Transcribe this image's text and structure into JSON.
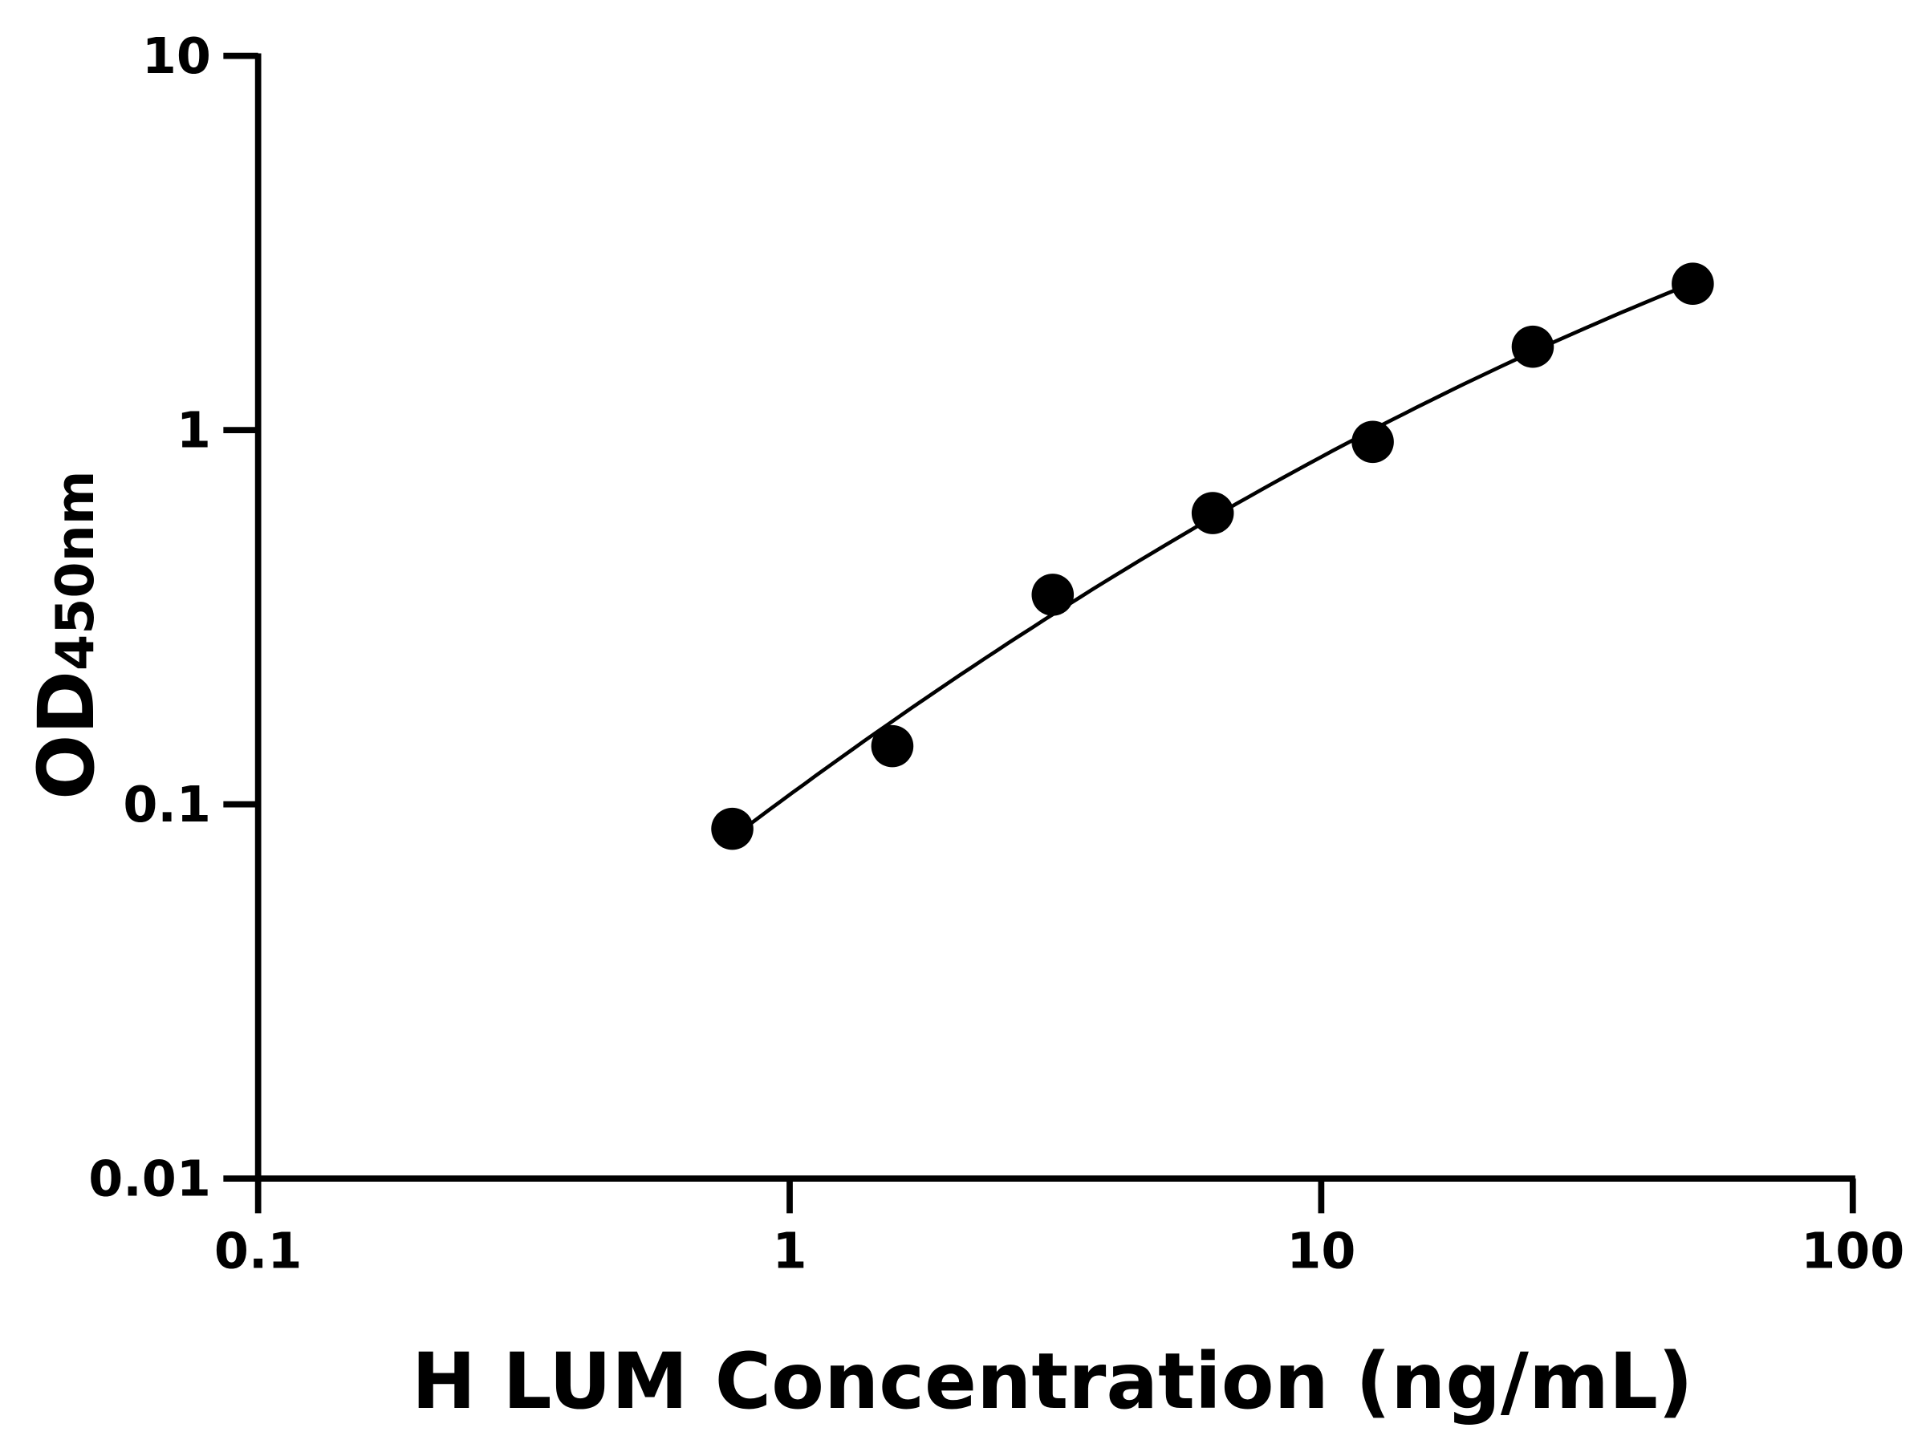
{
  "chart_data": {
    "type": "scatter",
    "title": "",
    "xlabel": "H LUM Concentration (ng/mL)",
    "ylabel_main": "OD",
    "ylabel_sub": "450nm",
    "x_scale": "log",
    "y_scale": "log",
    "xlim": [
      0.1,
      100
    ],
    "ylim": [
      0.01,
      10
    ],
    "x_ticks": [
      "0.1",
      "1",
      "10",
      "100"
    ],
    "y_ticks": [
      "0.01",
      "0.1",
      "1",
      "10"
    ],
    "grid": false,
    "legend": "none",
    "fit_curve": true,
    "color": "#000000",
    "x": [
      0.78,
      1.56,
      3.125,
      6.25,
      12.5,
      25,
      50
    ],
    "y": [
      0.086,
      0.143,
      0.363,
      0.6,
      0.93,
      1.67,
      2.46
    ]
  }
}
